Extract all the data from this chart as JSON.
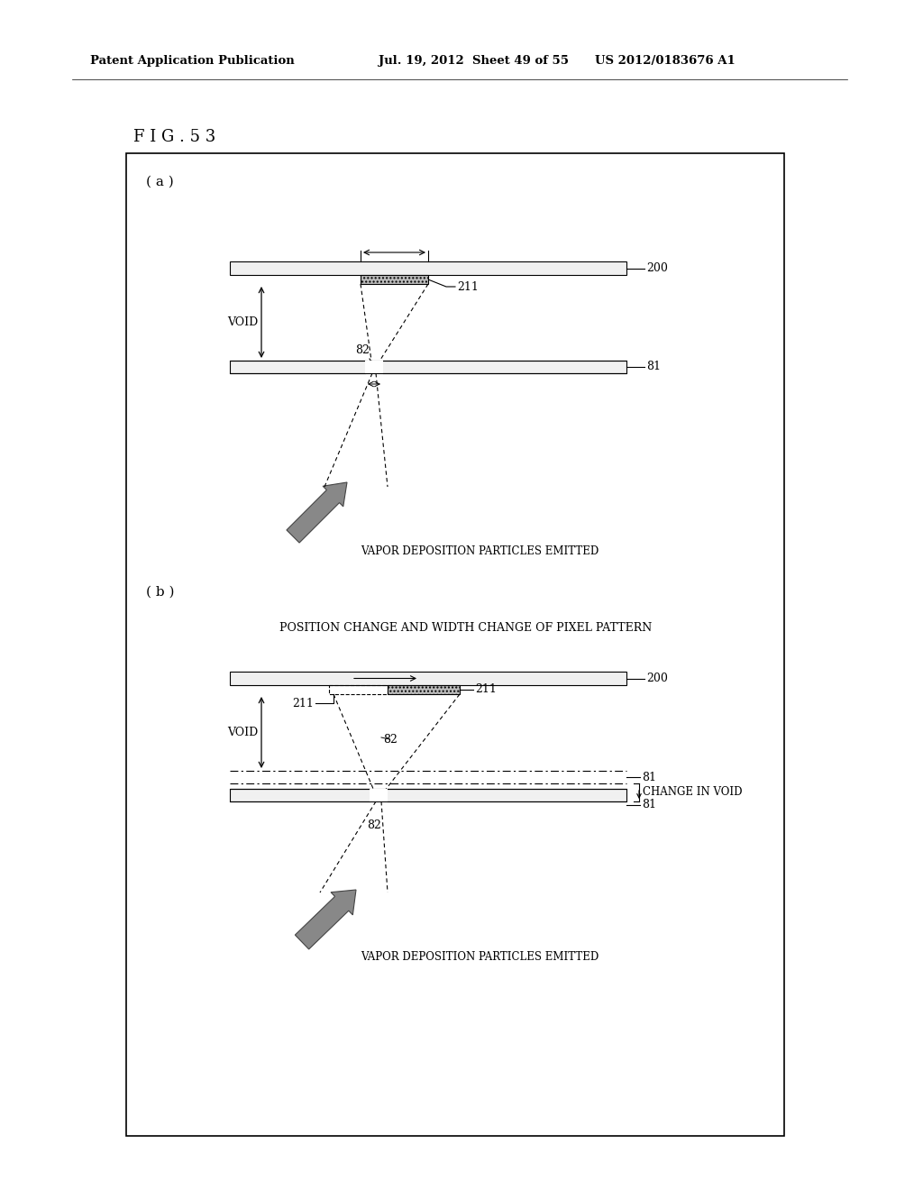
{
  "bg_color": "#ffffff",
  "header_left": "Patent Application Publication",
  "header_mid": "Jul. 19, 2012  Sheet 49 of 55",
  "header_right": "US 2012/0183676 A1",
  "fig_label": "F I G . 5 3",
  "section_a_label": "( a )",
  "section_b_label": "( b )",
  "b_caption": "POSITION CHANGE AND WIDTH CHANGE OF PIXEL PATTERN",
  "vapor_text": "VAPOR DEPOSITION PARTICLES EMITTED",
  "void_text": "VOID",
  "change_void_text": "CHANGE IN VOID",
  "label_200": "200",
  "label_211": "211",
  "label_82": "82",
  "label_81": "81",
  "plate_facecolor": "#f0f0f0",
  "mask_facecolor": "#bbbbbb",
  "arrow_facecolor": "#888888",
  "arrow_edgecolor": "#444444"
}
